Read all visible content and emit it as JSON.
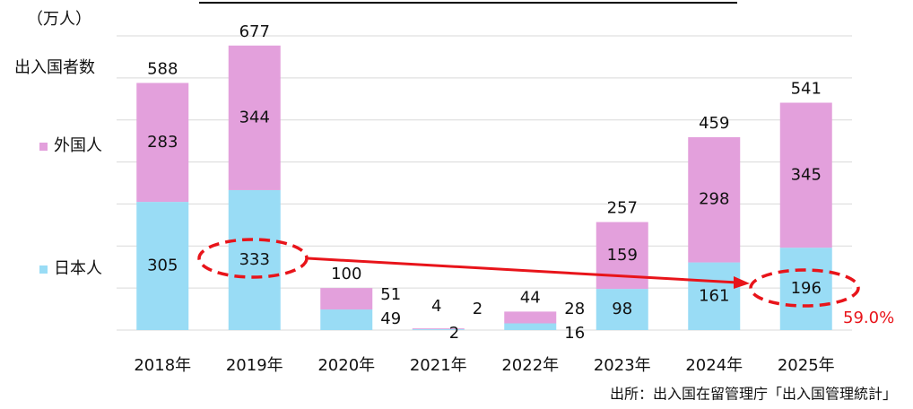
{
  "chart_data": {
    "type": "bar",
    "stacked": true,
    "unit_label": "（万人）",
    "y_axis_label": "出入国者数",
    "categories": [
      "2018年",
      "2019年",
      "2020年",
      "2021年",
      "2022年",
      "2023年",
      "2024年",
      "2025年"
    ],
    "series": [
      {
        "name": "日本人",
        "color": "#99dcf5",
        "values": [
          305,
          333,
          49,
          2,
          16,
          98,
          161,
          196
        ]
      },
      {
        "name": "外国人",
        "color": "#e3a0dc",
        "values": [
          283,
          344,
          51,
          2,
          28,
          159,
          298,
          345
        ]
      }
    ],
    "totals": [
      588,
      677,
      100,
      4,
      44,
      257,
      459,
      541
    ],
    "ylim": [
      0,
      700
    ],
    "yticks": [
      0,
      100,
      200,
      300,
      400,
      500,
      600,
      700
    ],
    "grid": true,
    "annotation": "59.0%",
    "source": "出所：出入国在留管理庁「出入国管理統計」"
  }
}
